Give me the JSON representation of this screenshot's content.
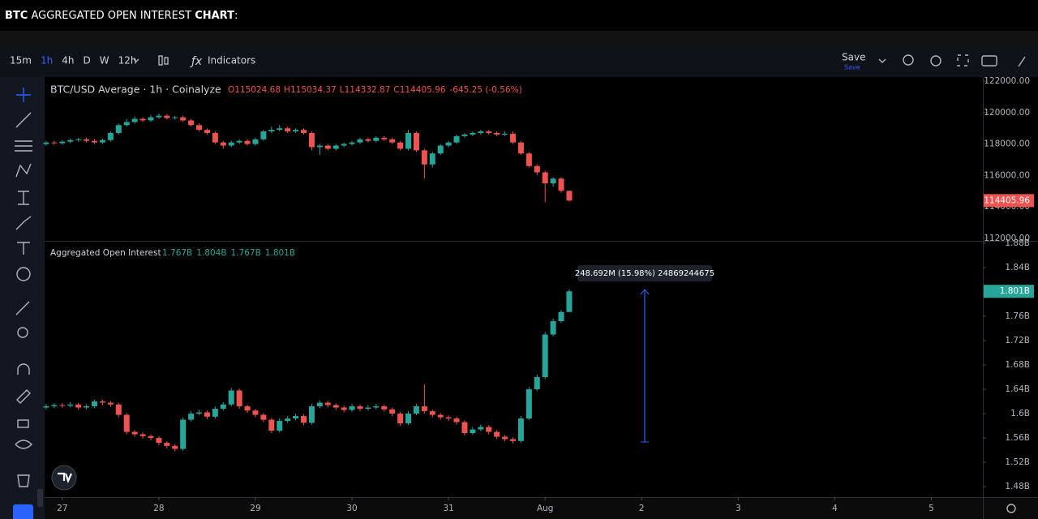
{
  "page_title": [
    "BTC",
    " AGGREGATED OPEN INTEREST ",
    "CHART",
    ":"
  ],
  "toolbar": {
    "intervals": [
      "15m",
      "1h",
      "4h",
      "D",
      "W",
      "12h"
    ],
    "indicators": "Indicators",
    "save": "Save",
    "save_sub": "Save"
  },
  "chart_data": [
    {
      "type": "candlestick",
      "title": "BTC/USD Average · 1h · Coinalyze",
      "legend_prefixes": [
        "O",
        "H",
        "L",
        "C"
      ],
      "change": "-645.25 (-0.56%)",
      "up_color": "#26a69a",
      "down_color": "#ef5350",
      "xlim": [
        -0.2,
        116.4
      ],
      "ylim": [
        111845,
        122206
      ],
      "yticks": [
        {
          "value": 122000,
          "label": "122000.00"
        },
        {
          "value": 120000,
          "label": "120000.00"
        },
        {
          "value": 118000,
          "label": "118000.00"
        },
        {
          "value": 116000,
          "label": "116000.00"
        },
        {
          "value": 114000,
          "label": "114000.00"
        },
        {
          "value": 112000,
          "label": "112000.00"
        }
      ],
      "ohlc": [
        [
          118000,
          118200,
          117900,
          118100
        ],
        [
          118100,
          118200,
          117950,
          118050
        ],
        [
          118050,
          118250,
          117950,
          118150
        ],
        [
          118150,
          118350,
          118050,
          118250
        ],
        [
          118250,
          118400,
          118150,
          118300
        ],
        [
          118300,
          118400,
          118100,
          118200
        ],
        [
          118200,
          118300,
          118000,
          118100
        ],
        [
          118100,
          118350,
          118000,
          118250
        ],
        [
          118250,
          118800,
          118150,
          118700
        ],
        [
          118700,
          119300,
          118600,
          119200
        ],
        [
          119200,
          119600,
          119100,
          119400
        ],
        [
          119400,
          119750,
          119300,
          119600
        ],
        [
          119600,
          119700,
          119400,
          119500
        ],
        [
          119500,
          119850,
          119400,
          119700
        ],
        [
          119700,
          119950,
          119600,
          119800
        ],
        [
          119800,
          119900,
          119550,
          119650
        ],
        [
          119650,
          119800,
          119550,
          119700
        ],
        [
          119700,
          119800,
          119400,
          119500
        ],
        [
          119500,
          119600,
          119100,
          119200
        ],
        [
          119200,
          119300,
          118800,
          118900
        ],
        [
          118900,
          119000,
          118600,
          118700
        ],
        [
          118700,
          118800,
          118000,
          118100
        ],
        [
          118100,
          118200,
          117700,
          117900
        ],
        [
          117900,
          118200,
          117800,
          118100
        ],
        [
          118100,
          118300,
          118000,
          118200
        ],
        [
          118200,
          118300,
          117900,
          118000
        ],
        [
          118000,
          118400,
          117900,
          118300
        ],
        [
          118300,
          118900,
          118200,
          118800
        ],
        [
          118800,
          119100,
          118700,
          118900
        ],
        [
          118900,
          119200,
          118800,
          119000
        ],
        [
          119000,
          119100,
          118700,
          118800
        ],
        [
          118800,
          119000,
          118700,
          118900
        ],
        [
          118900,
          119000,
          118600,
          118700
        ],
        [
          118700,
          118800,
          117600,
          117800
        ],
        [
          117800,
          118000,
          117300,
          117900
        ],
        [
          117900,
          118000,
          117600,
          117700
        ],
        [
          117700,
          118000,
          117600,
          117900
        ],
        [
          117900,
          118100,
          117800,
          118000
        ],
        [
          118000,
          118200,
          117900,
          118100
        ],
        [
          118100,
          118400,
          118000,
          118300
        ],
        [
          118300,
          118400,
          118100,
          118200
        ],
        [
          118200,
          118500,
          118100,
          118400
        ],
        [
          118400,
          118500,
          118200,
          118300
        ],
        [
          118300,
          118400,
          118000,
          118100
        ],
        [
          118100,
          118200,
          117600,
          117700
        ],
        [
          117700,
          118900,
          117600,
          118700
        ],
        [
          118700,
          118800,
          117500,
          117600
        ],
        [
          117600,
          117700,
          115800,
          116700
        ],
        [
          116700,
          117500,
          116500,
          117400
        ],
        [
          117400,
          118000,
          117300,
          117900
        ],
        [
          117900,
          118200,
          117800,
          118100
        ],
        [
          118100,
          118600,
          118000,
          118500
        ],
        [
          118500,
          118700,
          118400,
          118600
        ],
        [
          118600,
          118800,
          118500,
          118700
        ],
        [
          118700,
          118900,
          118600,
          118800
        ],
        [
          118800,
          118900,
          118600,
          118700
        ],
        [
          118700,
          118800,
          118500,
          118600
        ],
        [
          118600,
          118800,
          118500,
          118650
        ],
        [
          118650,
          118800,
          118000,
          118100
        ],
        [
          118100,
          118200,
          117300,
          117400
        ],
        [
          117400,
          117500,
          116500,
          116600
        ],
        [
          116600,
          116700,
          116000,
          116200
        ],
        [
          116200,
          116300,
          114300,
          115500
        ],
        [
          115500,
          115900,
          115300,
          115800
        ],
        [
          115800,
          115900,
          114900,
          115024.68
        ],
        [
          115024.68,
          115034.37,
          114332.87,
          114405.96
        ]
      ]
    },
    {
      "type": "candlestick",
      "title": "Aggregated Open Interest",
      "legend_values": [
        "1.767B",
        "1.804B",
        "1.767B",
        "1.801B"
      ],
      "last_label": "1.801B",
      "measure_label": "248.692M (15.98%) 24869244675",
      "up_color": "#26a69a",
      "down_color": "#ef5350",
      "xlim": [
        -0.2,
        116.4
      ],
      "ylim": [
        1.4628,
        1.8826
      ],
      "xticks": [
        {
          "value": 2,
          "label": "27"
        },
        {
          "value": 14,
          "label": "28"
        },
        {
          "value": 26,
          "label": "29"
        },
        {
          "value": 38,
          "label": "30"
        },
        {
          "value": 50,
          "label": "31"
        },
        {
          "value": 62,
          "label": "Aug"
        },
        {
          "value": 74,
          "label": "2"
        },
        {
          "value": 86,
          "label": "3"
        },
        {
          "value": 98,
          "label": "4"
        },
        {
          "value": 110,
          "label": "5"
        }
      ],
      "yticks": [
        {
          "value": 1.88,
          "label": "1.88B"
        },
        {
          "value": 1.84,
          "label": "1.84B"
        },
        {
          "value": 1.76,
          "label": "1.76B"
        },
        {
          "value": 1.72,
          "label": "1.72B"
        },
        {
          "value": 1.68,
          "label": "1.68B"
        },
        {
          "value": 1.64,
          "label": "1.64B"
        },
        {
          "value": 1.6,
          "label": "1.6B"
        },
        {
          "value": 1.56,
          "label": "1.56B"
        },
        {
          "value": 1.52,
          "label": "1.52B"
        },
        {
          "value": 1.48,
          "label": "1.48B"
        }
      ],
      "ohlc": [
        [
          1.61,
          1.616,
          1.607,
          1.612
        ],
        [
          1.612,
          1.617,
          1.609,
          1.614
        ],
        [
          1.614,
          1.617,
          1.61,
          1.613
        ],
        [
          1.613,
          1.619,
          1.61,
          1.615
        ],
        [
          1.615,
          1.618,
          1.606,
          1.61
        ],
        [
          1.61,
          1.615,
          1.607,
          1.612
        ],
        [
          1.612,
          1.623,
          1.609,
          1.62
        ],
        [
          1.62,
          1.623,
          1.614,
          1.618
        ],
        [
          1.618,
          1.621,
          1.611,
          1.615
        ],
        [
          1.615,
          1.618,
          1.594,
          1.598
        ],
        [
          1.598,
          1.601,
          1.566,
          1.57
        ],
        [
          1.57,
          1.573,
          1.562,
          1.566
        ],
        [
          1.566,
          1.569,
          1.559,
          1.563
        ],
        [
          1.563,
          1.566,
          1.556,
          1.56
        ],
        [
          1.56,
          1.563,
          1.548,
          1.552
        ],
        [
          1.552,
          1.555,
          1.543,
          1.547
        ],
        [
          1.547,
          1.55,
          1.538,
          1.542
        ],
        [
          1.542,
          1.594,
          1.539,
          1.59
        ],
        [
          1.59,
          1.604,
          1.587,
          1.6
        ],
        [
          1.6,
          1.606,
          1.597,
          1.602
        ],
        [
          1.602,
          1.605,
          1.591,
          1.595
        ],
        [
          1.595,
          1.612,
          1.592,
          1.608
        ],
        [
          1.608,
          1.619,
          1.605,
          1.615
        ],
        [
          1.615,
          1.642,
          1.612,
          1.638
        ],
        [
          1.638,
          1.641,
          1.608,
          1.612
        ],
        [
          1.612,
          1.615,
          1.601,
          1.605
        ],
        [
          1.605,
          1.608,
          1.594,
          1.598
        ],
        [
          1.598,
          1.601,
          1.586,
          1.59
        ],
        [
          1.59,
          1.593,
          1.568,
          1.572
        ],
        [
          1.572,
          1.592,
          1.569,
          1.588
        ],
        [
          1.588,
          1.596,
          1.585,
          1.592
        ],
        [
          1.592,
          1.6,
          1.589,
          1.596
        ],
        [
          1.596,
          1.599,
          1.581,
          1.585
        ],
        [
          1.585,
          1.616,
          1.582,
          1.612
        ],
        [
          1.612,
          1.622,
          1.609,
          1.618
        ],
        [
          1.618,
          1.621,
          1.61,
          1.614
        ],
        [
          1.614,
          1.617,
          1.606,
          1.61
        ],
        [
          1.61,
          1.613,
          1.602,
          1.606
        ],
        [
          1.606,
          1.616,
          1.603,
          1.612
        ],
        [
          1.612,
          1.615,
          1.604,
          1.608
        ],
        [
          1.608,
          1.614,
          1.605,
          1.61
        ],
        [
          1.61,
          1.616,
          1.607,
          1.612
        ],
        [
          1.612,
          1.615,
          1.603,
          1.607
        ],
        [
          1.607,
          1.61,
          1.596,
          1.6
        ],
        [
          1.6,
          1.603,
          1.58,
          1.584
        ],
        [
          1.584,
          1.604,
          1.581,
          1.6
        ],
        [
          1.6,
          1.616,
          1.597,
          1.612
        ],
        [
          1.612,
          1.648,
          1.6,
          1.604
        ],
        [
          1.604,
          1.607,
          1.594,
          1.598
        ],
        [
          1.598,
          1.601,
          1.59,
          1.594
        ],
        [
          1.594,
          1.597,
          1.588,
          1.592
        ],
        [
          1.592,
          1.595,
          1.582,
          1.586
        ],
        [
          1.586,
          1.589,
          1.564,
          1.568
        ],
        [
          1.568,
          1.578,
          1.565,
          1.574
        ],
        [
          1.574,
          1.582,
          1.571,
          1.578
        ],
        [
          1.578,
          1.581,
          1.566,
          1.57
        ],
        [
          1.57,
          1.573,
          1.558,
          1.562
        ],
        [
          1.562,
          1.565,
          1.554,
          1.558
        ],
        [
          1.558,
          1.561,
          1.551,
          1.555
        ],
        [
          1.555,
          1.596,
          1.552,
          1.592
        ],
        [
          1.592,
          1.644,
          1.589,
          1.64
        ],
        [
          1.64,
          1.664,
          1.637,
          1.66
        ],
        [
          1.66,
          1.734,
          1.657,
          1.73
        ],
        [
          1.73,
          1.756,
          1.727,
          1.752
        ],
        [
          1.752,
          1.77,
          1.749,
          1.767
        ],
        [
          1.767,
          1.804,
          1.767,
          1.801
        ]
      ]
    }
  ]
}
